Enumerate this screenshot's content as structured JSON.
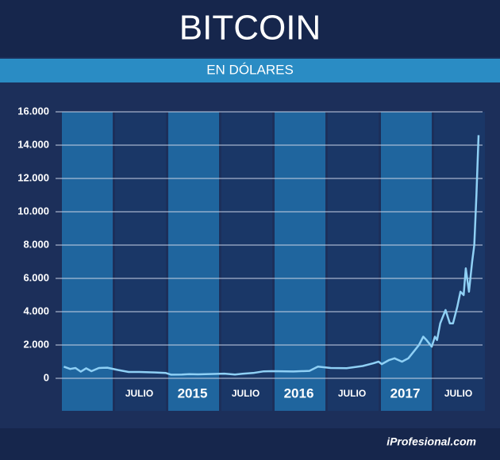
{
  "chart_data": {
    "type": "line",
    "title": "BITCOIN",
    "subtitle": "EN DÓLARES",
    "source": "iProfesional.com",
    "xlim": [
      2014,
      2018
    ],
    "ylim": [
      0,
      16000
    ],
    "xticks": [
      {
        "value": 2014.75,
        "label": "JULIO"
      },
      {
        "value": 2015.25,
        "label": "2015"
      },
      {
        "value": 2015.75,
        "label": "JULIO"
      },
      {
        "value": 2016.25,
        "label": "2016"
      },
      {
        "value": 2016.75,
        "label": "JULIO"
      },
      {
        "value": 2017.25,
        "label": "2017"
      },
      {
        "value": 2017.75,
        "label": "JULIO"
      }
    ],
    "yticks": [
      0,
      {
        "value": 2000,
        "label": "2.000"
      },
      {
        "value": 4000,
        "label": "4.000"
      },
      {
        "value": 6000,
        "label": "6.000"
      },
      {
        "value": 8000,
        "label": "8.000"
      },
      {
        "value": 10000,
        "label": "10.000"
      },
      {
        "value": 12000,
        "label": "12.000"
      },
      {
        "value": 14000,
        "label": "14.000"
      },
      {
        "value": 16000,
        "label": "16.000"
      }
    ],
    "grid": true,
    "x": [
      2014.04,
      2014.1,
      2014.15,
      2014.2,
      2014.25,
      2014.3,
      2014.37,
      2014.45,
      2014.55,
      2014.65,
      2014.75,
      2014.9,
      2015.0,
      2015.05,
      2015.15,
      2015.22,
      2015.3,
      2015.45,
      2015.55,
      2015.65,
      2015.72,
      2015.82,
      2015.92,
      2016.0,
      2016.2,
      2016.35,
      2016.43,
      2016.55,
      2016.7,
      2016.85,
      2016.95,
      2017.0,
      2017.03,
      2017.1,
      2017.15,
      2017.22,
      2017.28,
      2017.38,
      2017.42,
      2017.45,
      2017.5,
      2017.53,
      2017.55,
      2017.58,
      2017.63,
      2017.67,
      2017.7,
      2017.74,
      2017.77,
      2017.8,
      2017.82,
      2017.85,
      2017.88,
      2017.9,
      2017.92,
      2017.94
    ],
    "series": [
      {
        "name": "Bitcoin",
        "color": "#8fd0f5",
        "values": [
          700,
          560,
          620,
          400,
          600,
          430,
          620,
          640,
          500,
          380,
          380,
          350,
          320,
          220,
          230,
          250,
          240,
          260,
          280,
          230,
          270,
          320,
          420,
          430,
          410,
          450,
          700,
          620,
          610,
          740,
          900,
          1000,
          850,
          1100,
          1200,
          1000,
          1200,
          2000,
          2500,
          2300,
          1900,
          2500,
          2300,
          3300,
          4100,
          3300,
          3300,
          4300,
          5200,
          5000,
          6600,
          5200,
          7000,
          8000,
          11000,
          14600
        ]
      }
    ]
  }
}
